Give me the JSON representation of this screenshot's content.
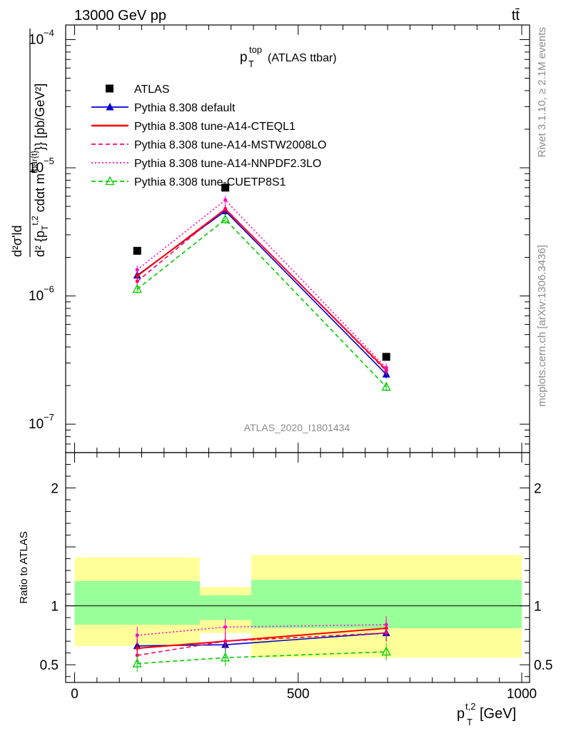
{
  "header": {
    "left": "13000 GeV pp",
    "right": "tt̄"
  },
  "plot_title": {
    "main": "p",
    "sub": "T",
    "sup": "top",
    "rest": "(ATLAS ttbar)"
  },
  "side_labels": {
    "rivet": "Rivet 3.1.10, ≥ 2.1M events",
    "mcplots": "mcplots.cern.ch [arXiv:1306.3436]"
  },
  "analysis_id": "ATLAS_2020_I1801434",
  "y_label_main": {
    "num": "d²σ'ld",
    "den": "d² {p",
    "den_sub": "T",
    "den_sup": "t,2",
    "den_mid": " cdαt m",
    "den_sup2": "tbar{t}",
    "den_end": "}} [pb/GeV²]"
  },
  "y_label_ratio": "Ratio to ATLAS",
  "x_label": {
    "main": "p",
    "sub": "T",
    "sup": "t,2",
    "unit": " [GeV]"
  },
  "ticks": {
    "main_y": [
      {
        "value": 0.0001,
        "label": "10",
        "exp": "−4"
      },
      {
        "value": 1e-05,
        "label": "10",
        "exp": "−5"
      },
      {
        "value": 1e-06,
        "label": "10",
        "exp": "−6"
      },
      {
        "value": 1e-07,
        "label": "10",
        "exp": "−7"
      }
    ],
    "ratio_y": [
      {
        "value": 2,
        "label": "2"
      },
      {
        "value": 1,
        "label": "1"
      },
      {
        "value": 0.5,
        "label": "0.5"
      }
    ],
    "x": [
      {
        "value": 0,
        "label": "0"
      },
      {
        "value": 500,
        "label": "500"
      },
      {
        "value": 1000,
        "label": "1000"
      }
    ]
  },
  "colors": {
    "atlas": "#000000",
    "default": "#0000cc",
    "cteql1": "#ff0000",
    "mstw": "#ff0066",
    "nnpdf": "#ff00cc",
    "cuetp": "#00cc00",
    "band_yellow": "#ffff99",
    "band_green": "#99ff99"
  },
  "chart_data": {
    "type": "line",
    "x_range": [
      -20,
      1000
    ],
    "y_range_main": [
      6e-08,
      0.00013
    ],
    "y_log_main": true,
    "y_range_ratio": [
      0.35,
      2.3
    ],
    "x": [
      140,
      337,
      697
    ],
    "bins": [
      [
        0,
        280
      ],
      [
        280,
        395
      ],
      [
        395,
        1000
      ]
    ],
    "legend_position": "top-left",
    "series": [
      {
        "name": "ATLAS",
        "key": "atlas",
        "style": "marker-square",
        "values": [
          2.25e-06,
          7e-06,
          3.35e-07
        ]
      },
      {
        "name": "Pythia 8.308 default",
        "key": "default",
        "style": "solid-tri",
        "values": [
          1.45e-06,
          4.6e-06,
          2.45e-07
        ],
        "ratio": [
          0.66,
          0.67,
          0.77
        ]
      },
      {
        "name": "Pythia 8.308 tune-A14-CTEQL1",
        "key": "cteql1",
        "style": "solid",
        "values": [
          1.43e-06,
          4.75e-06,
          2.65e-07
        ],
        "ratio": [
          0.64,
          0.7,
          0.81
        ]
      },
      {
        "name": "Pythia 8.308 tune-A14-MSTW2008LO",
        "key": "mstw",
        "style": "dashed",
        "values": [
          1.3e-06,
          4.8e-06,
          2.6e-07
        ],
        "ratio": [
          0.58,
          0.7,
          0.77
        ]
      },
      {
        "name": "Pythia 8.308 tune-A14-NNPDF2.3LO",
        "key": "nnpdf",
        "style": "dotted",
        "values": [
          1.6e-06,
          5.6e-06,
          2.75e-07
        ],
        "ratio": [
          0.75,
          0.82,
          0.84
        ]
      },
      {
        "name": "Pythia 8.308 tune-CUETP8S1",
        "key": "cuetp",
        "style": "dashed-tri-open",
        "values": [
          1.13e-06,
          3.95e-06,
          1.95e-07
        ],
        "ratio": [
          0.51,
          0.56,
          0.61
        ]
      }
    ],
    "ratio_bands": {
      "yellow": [
        [
          0.66,
          1.41
        ],
        [
          0.77,
          1.16
        ],
        [
          0.56,
          1.43
        ]
      ],
      "green": [
        [
          0.84,
          1.21
        ],
        [
          0.88,
          1.09
        ],
        [
          0.81,
          1.22
        ]
      ]
    }
  }
}
